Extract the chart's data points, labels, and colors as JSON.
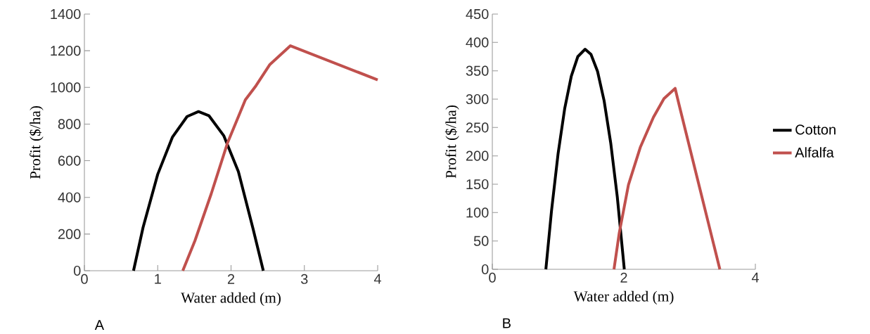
{
  "chart_data": [
    {
      "type": "line",
      "xlabel": "Water added (m)",
      "ylabel": "Profit ($/ha)",
      "xlim": [
        0,
        4
      ],
      "ylim": [
        0,
        1400
      ],
      "xticks": [
        0,
        1,
        2,
        3,
        4
      ],
      "yticks": [
        0,
        200,
        400,
        600,
        800,
        1000,
        1200,
        1400
      ],
      "legend": false,
      "annotations": [
        "A"
      ],
      "series": [
        {
          "color": "#000000",
          "x": [
            0.67,
            0.8,
            1.0,
            1.2,
            1.4,
            1.556,
            1.7,
            1.9,
            2.1,
            2.3,
            2.44
          ],
          "values": [
            0,
            236,
            526,
            728,
            841,
            868,
            845,
            737,
            541,
            229,
            0
          ]
        },
        {
          "color": "#c0504d",
          "x": [
            1.342,
            1.508,
            1.73,
            1.95,
            2.195,
            2.34,
            2.53,
            2.81,
            4.0
          ],
          "values": [
            0,
            164,
            420,
            695,
            932,
            1009,
            1125,
            1227,
            1041
          ]
        }
      ]
    },
    {
      "type": "line",
      "xlabel": "Water added (m)",
      "ylabel": "Profit ($/ha)",
      "xlim": [
        0,
        4
      ],
      "ylim": [
        0,
        450
      ],
      "xticks": [
        0,
        2,
        4
      ],
      "yticks": [
        0,
        50,
        100,
        150,
        200,
        250,
        300,
        350,
        400,
        450
      ],
      "legend": "right",
      "annotations": [
        "B"
      ],
      "series": [
        {
          "name": "Cotton",
          "color": "#000000",
          "x": [
            0.814,
            0.9,
            1.0,
            1.1,
            1.2,
            1.3,
            1.411,
            1.5,
            1.6,
            1.7,
            1.8,
            1.9,
            2.007
          ],
          "values": [
            0,
            103,
            204,
            283,
            340,
            375,
            388,
            379,
            349,
            297,
            223,
            128,
            0
          ]
        },
        {
          "name": "Alfalfa",
          "color": "#c0504d",
          "x": [
            1.85,
            1.93,
            2.07,
            2.25,
            2.45,
            2.61,
            2.78,
            2.84,
            3.46
          ],
          "values": [
            0,
            64,
            149,
            215,
            268,
            301,
            319,
            290,
            0
          ]
        }
      ]
    }
  ]
}
